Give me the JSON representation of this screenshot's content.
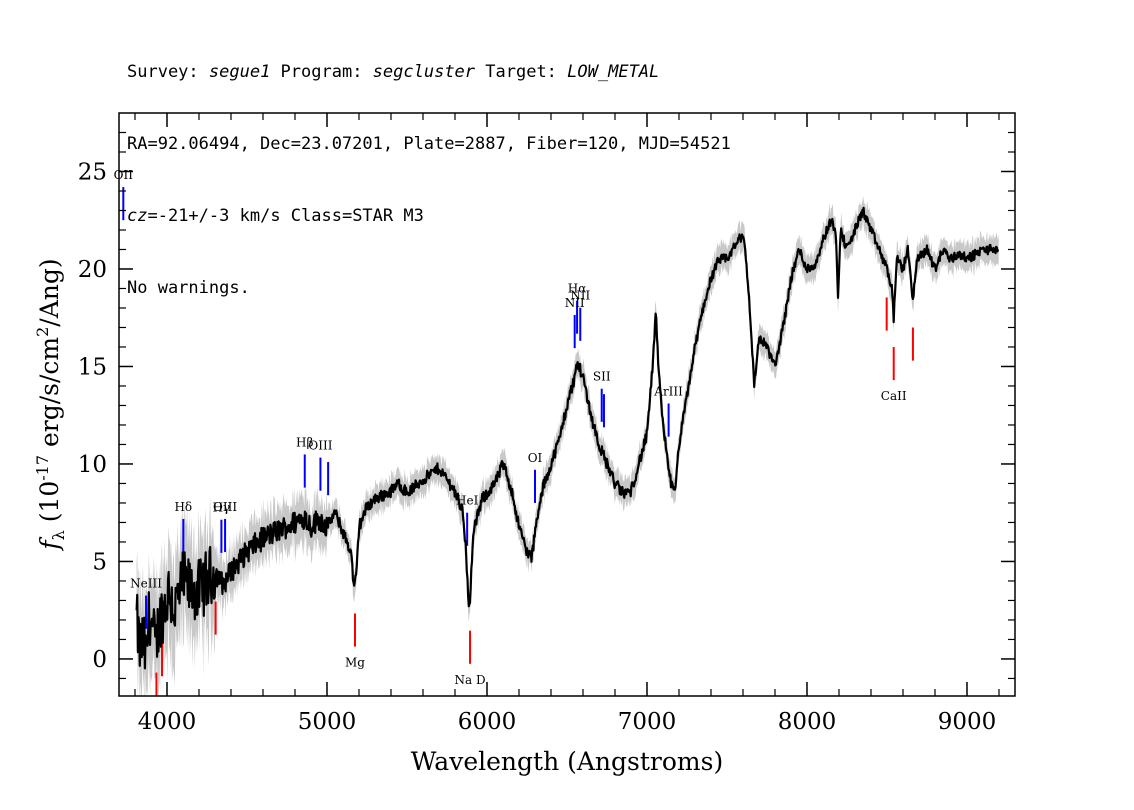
{
  "header": {
    "line1": {
      "survey_label": "Survey: ",
      "survey": "segue1",
      "program_label": " Program: ",
      "program": "segcluster",
      "target_label": " Target: ",
      "target": "LOW_METAL"
    },
    "line2": "RA=92.06494, Dec=23.07201, Plate=2887, Fiber=120, MJD=54521",
    "line3": {
      "cz_label": "cz",
      "cz_value": "=-21+/-3",
      "cz_rest": " km/s Class=STAR M3"
    },
    "line4": "No warnings."
  },
  "chart_data": {
    "type": "line",
    "xlabel": "Wavelength (Angstroms)",
    "ylabel": "f_λ (10^-17 erg/s/cm^2/Ang)",
    "xlim": [
      3700,
      9300
    ],
    "ylim": [
      -1.9,
      28
    ],
    "x_ticks": [
      4000,
      5000,
      6000,
      7000,
      8000,
      9000
    ],
    "y_ticks": [
      0,
      5,
      10,
      15,
      20,
      25
    ],
    "colors": {
      "flux": "#000000",
      "error": "#c8c8c8",
      "emission": "#0000ff",
      "absorption": "#ff0000"
    },
    "series": [
      {
        "x": [
          3810,
          3830,
          3850,
          3870,
          3890,
          3910,
          3930,
          3950,
          3980,
          4010,
          4050,
          4100,
          4150,
          4200,
          4250,
          4300,
          4350,
          4400,
          4450,
          4500,
          4600,
          4700,
          4800,
          4860,
          4900,
          4950,
          5000,
          5050,
          5100,
          5150,
          5170,
          5185,
          5200,
          5250,
          5300,
          5400,
          5450,
          5500,
          5600,
          5700,
          5800,
          5850,
          5870,
          5885,
          5895,
          5910,
          5930,
          5970,
          6050,
          6100,
          6150,
          6200,
          6250,
          6280,
          6300,
          6350,
          6400,
          6450,
          6500,
          6550,
          6562,
          6600,
          6650,
          6700,
          6750,
          6800,
          6850,
          6900,
          7000,
          7040,
          7055,
          7070,
          7100,
          7150,
          7175,
          7200,
          7250,
          7300,
          7350,
          7400,
          7450,
          7500,
          7550,
          7600,
          7620,
          7650,
          7670,
          7680,
          7700,
          7750,
          7800,
          7850,
          7900,
          7950,
          8000,
          8050,
          8100,
          8150,
          8180,
          8195,
          8210,
          8250,
          8300,
          8350,
          8400,
          8450,
          8500,
          8530,
          8542,
          8560,
          8600,
          8630,
          8662,
          8690,
          8750,
          8800,
          8850,
          8900,
          8950,
          9000,
          9100,
          9200
        ],
        "y": [
          2.0,
          0.5,
          1.0,
          0.0,
          2.5,
          1.5,
          0.5,
          2.0,
          2.5,
          3.5,
          2.5,
          4.0,
          3.5,
          3.5,
          4.0,
          4.5,
          3.8,
          4.5,
          5.0,
          5.5,
          6.2,
          6.6,
          7.0,
          7.3,
          6.8,
          7.2,
          6.8,
          7.5,
          6.5,
          5.5,
          3.5,
          4.5,
          6.8,
          7.8,
          8.2,
          8.6,
          9.0,
          8.5,
          9.2,
          9.8,
          8.6,
          7.5,
          5.5,
          2.5,
          3.0,
          6.0,
          7.0,
          8.2,
          9.0,
          10.0,
          8.8,
          6.8,
          5.5,
          5.2,
          6.5,
          8.8,
          10.0,
          11.2,
          13.0,
          14.5,
          15.2,
          14.5,
          12.5,
          11.0,
          10.0,
          9.0,
          8.5,
          8.6,
          11.5,
          15.5,
          18.0,
          15.0,
          12.0,
          9.0,
          8.5,
          11.0,
          13.5,
          16.0,
          18.0,
          19.5,
          20.5,
          20.5,
          21.2,
          21.8,
          20.5,
          17.0,
          14.0,
          14.8,
          16.5,
          16.0,
          15.0,
          17.0,
          19.5,
          21.0,
          20.0,
          20.2,
          21.5,
          22.5,
          22.0,
          18.5,
          22.0,
          21.0,
          22.0,
          23.0,
          22.0,
          21.0,
          20.0,
          19.0,
          17.5,
          20.5,
          20.0,
          21.0,
          18.5,
          20.5,
          21.0,
          20.0,
          21.0,
          20.5,
          20.8,
          20.5,
          21.0,
          21.0
        ]
      }
    ],
    "emission_lines": [
      {
        "label": "OII",
        "lambda": 3727
      },
      {
        "label": "NeIII",
        "lambda": 3869
      },
      {
        "label": "Hδ",
        "lambda": 4102
      },
      {
        "label": "Hγ",
        "lambda": 4340
      },
      {
        "label": "OIII",
        "lambda": 4363
      },
      {
        "label": "Hβ",
        "lambda": 4861
      },
      {
        "label": "OIII",
        "lambda": 4959
      },
      {
        "label": "",
        "lambda": 5007
      },
      {
        "label": "HeI",
        "lambda": 5876
      },
      {
        "label": "OI",
        "lambda": 6300
      },
      {
        "label": "NII",
        "lambda": 6548
      },
      {
        "label": "Hα",
        "lambda": 6563
      },
      {
        "label": "NII",
        "lambda": 6583
      },
      {
        "label": "SII",
        "lambda": 6717
      },
      {
        "label": "",
        "lambda": 6731
      },
      {
        "label": "ArIII",
        "lambda": 7135
      }
    ],
    "absorption_lines": [
      {
        "label": "",
        "lambda": 3934
      },
      {
        "label": "",
        "lambda": 3969
      },
      {
        "label": "",
        "lambda": 4304
      },
      {
        "label": "Mg",
        "lambda": 5175
      },
      {
        "label": "Na D",
        "lambda": 5894
      },
      {
        "label": "",
        "lambda": 8498
      },
      {
        "label": "CaII",
        "lambda": 8542
      },
      {
        "label": "",
        "lambda": 8662
      }
    ]
  }
}
